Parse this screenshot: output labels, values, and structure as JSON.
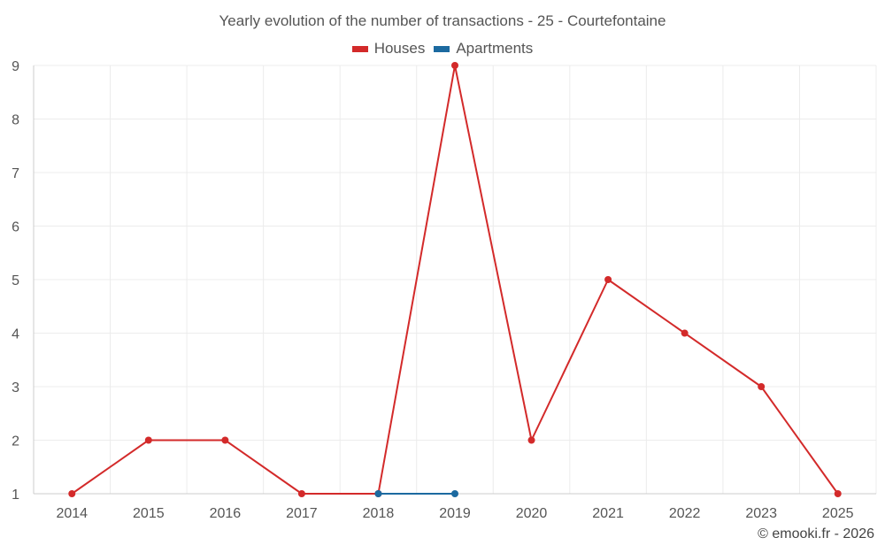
{
  "chart_data": {
    "type": "line",
    "title": "Yearly evolution of the number of transactions - 25 - Courtefontaine",
    "categories": [
      "2014",
      "2015",
      "2016",
      "2017",
      "2018",
      "2019",
      "2020",
      "2021",
      "2022",
      "2023",
      "2025"
    ],
    "series": [
      {
        "name": "Houses",
        "color": "#d32a2a",
        "values": [
          1,
          2,
          2,
          1,
          1,
          9,
          2,
          5,
          4,
          3,
          1
        ]
      },
      {
        "name": "Apartments",
        "color": "#1c6aa0",
        "values": [
          null,
          null,
          null,
          null,
          1,
          1,
          null,
          null,
          null,
          null,
          null
        ]
      }
    ],
    "y_ticks": [
      "1",
      "2",
      "3",
      "4",
      "5",
      "6",
      "7",
      "8",
      "9"
    ],
    "ylim": [
      1,
      9
    ],
    "grid": true,
    "legend_position": "top-center"
  },
  "footer": {
    "credit": "© emooki.fr - 2026"
  }
}
